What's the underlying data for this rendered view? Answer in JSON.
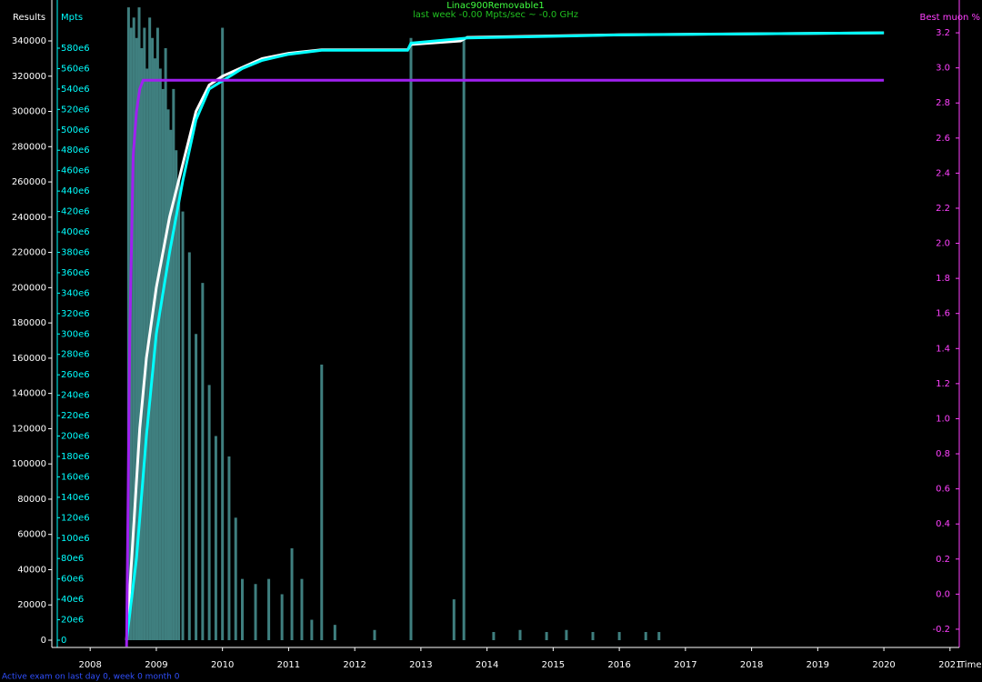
{
  "chart_data": {
    "type": "line",
    "title": "Linac900Removable1",
    "subtitle": "last week -0.00 Mpts/sec ~ -0.0 GHz",
    "footnote": "Active exam on last day 0, week 0 month 0",
    "x_label": "Time",
    "xlim": [
      2007.42,
      2021.14
    ],
    "xticks": [
      2008,
      2009,
      2010,
      2011,
      2012,
      2013,
      2014,
      2015,
      2016,
      2017,
      2018,
      2019,
      2020,
      2021
    ],
    "ylim": [
      -4128,
      363220
    ],
    "yticks": [
      0,
      20000,
      40000,
      60000,
      80000,
      100000,
      120000,
      140000,
      160000,
      180000,
      200000,
      220000,
      240000,
      260000,
      280000,
      300000,
      320000,
      340000
    ],
    "y2lim": [
      -7130000,
      627200000
    ],
    "y2ticks": [
      0,
      {
        "value": 20000000,
        "label": "20e6"
      },
      {
        "value": 40000000,
        "label": "40e6"
      },
      {
        "value": 60000000,
        "label": "60e6"
      },
      {
        "value": 80000000,
        "label": "80e6"
      },
      {
        "value": 100000000,
        "label": "100e6"
      },
      {
        "value": 120000000,
        "label": "120e6"
      },
      {
        "value": 140000000,
        "label": "140e6"
      },
      {
        "value": 160000000,
        "label": "160e6"
      },
      {
        "value": 180000000,
        "label": "180e6"
      },
      {
        "value": 200000000,
        "label": "200e6"
      },
      {
        "value": 220000000,
        "label": "220e6"
      },
      {
        "value": 240000000,
        "label": "240e6"
      },
      {
        "value": 260000000,
        "label": "260e6"
      },
      {
        "value": 280000000,
        "label": "280e6"
      },
      {
        "value": 300000000,
        "label": "300e6"
      },
      {
        "value": 320000000,
        "label": "320e6"
      },
      {
        "value": 340000000,
        "label": "340e6"
      },
      {
        "value": 360000000,
        "label": "360e6"
      },
      {
        "value": 380000000,
        "label": "380e6"
      },
      {
        "value": 400000000,
        "label": "400e6"
      },
      {
        "value": 420000000,
        "label": "420e6"
      },
      {
        "value": 440000000,
        "label": "440e6"
      },
      {
        "value": 460000000,
        "label": "460e6"
      },
      {
        "value": 480000000,
        "label": "480e6"
      },
      {
        "value": 500000000,
        "label": "500e6"
      },
      {
        "value": 520000000,
        "label": "520e6"
      },
      {
        "value": 540000000,
        "label": "540e6"
      },
      {
        "value": 560000000,
        "label": "560e6"
      },
      {
        "value": 580000000,
        "label": "580e6"
      }
    ],
    "y3lim": [
      -0.304,
      3.387
    ],
    "y3ticks": [
      -0.2,
      {
        "value": 0,
        "label": "0.0"
      },
      0.2,
      0.4,
      0.6,
      0.8,
      {
        "value": 1,
        "label": "1.0"
      },
      1.2,
      1.4,
      1.6,
      1.8,
      {
        "value": 2,
        "label": "2.0"
      },
      2.2,
      2.4,
      2.6,
      2.8,
      {
        "value": 3,
        "label": "3.0"
      },
      3.2
    ],
    "bars": {
      "color": "#3f7f7f",
      "axis": "y2",
      "x": [
        2008.58,
        2008.62,
        2008.66,
        2008.7,
        2008.74,
        2008.78,
        2008.82,
        2008.86,
        2008.9,
        2008.94,
        2008.98,
        2009.02,
        2009.06,
        2009.1,
        2009.14,
        2009.18,
        2009.22,
        2009.26,
        2009.3,
        2009.34,
        2009.4,
        2009.5,
        2009.6,
        2009.7,
        2009.8,
        2009.9,
        2010.0,
        2010.1,
        2010.2,
        2010.3,
        2010.5,
        2010.7,
        2010.9,
        2011.05,
        2011.2,
        2011.35,
        2011.5,
        2011.7,
        2012.3,
        2012.85,
        2013.5,
        2013.65,
        2014.1,
        2014.5,
        2014.9,
        2015.2,
        2015.6,
        2016.0,
        2016.4,
        2016.6
      ],
      "values": [
        620000000,
        600000000,
        610000000,
        590000000,
        620000000,
        580000000,
        600000000,
        560000000,
        610000000,
        590000000,
        570000000,
        600000000,
        560000000,
        540000000,
        580000000,
        520000000,
        500000000,
        540000000,
        480000000,
        450000000,
        420000000,
        380000000,
        300000000,
        350000000,
        250000000,
        200000000,
        600000000,
        180000000,
        120000000,
        60000000,
        55000000,
        60000000,
        45000000,
        90000000,
        60000000,
        20000000,
        270000000,
        15000000,
        10000000,
        590000000,
        40000000,
        590000000,
        8000000,
        10000000,
        8000000,
        10000000,
        8000000,
        8000000,
        8000000,
        8000000
      ]
    },
    "series": [
      {
        "name": "Results",
        "color": "#ffffff",
        "axis": "y",
        "x": [
          2008.55,
          2008.65,
          2008.75,
          2008.85,
          2009.0,
          2009.2,
          2009.4,
          2009.6,
          2009.8,
          2010.0,
          2010.3,
          2010.6,
          2011.0,
          2011.5,
          2012.0,
          2012.8,
          2012.85,
          2013.6,
          2013.7,
          2016.0,
          2020.0
        ],
        "values": [
          0,
          60000,
          120000,
          160000,
          200000,
          240000,
          270000,
          300000,
          315000,
          320000,
          325000,
          330000,
          333000,
          335000,
          335000,
          335000,
          338000,
          340000,
          342000,
          343500,
          344600
        ]
      },
      {
        "name": "Mpts",
        "color": "#00ffff",
        "axis": "y2",
        "x": [
          2008.55,
          2008.7,
          2008.85,
          2009.0,
          2009.2,
          2009.4,
          2009.6,
          2009.8,
          2010.0,
          2010.3,
          2010.6,
          2011.0,
          2011.5,
          2012.8,
          2012.85,
          2013.7,
          2016.0,
          2020.0
        ],
        "values": [
          0,
          80000000,
          200000000,
          300000000,
          380000000,
          450000000,
          510000000,
          540000000,
          548000000,
          560000000,
          568000000,
          574000000,
          578000000,
          578000000,
          585000000,
          590000000,
          593000000,
          595000000
        ]
      },
      {
        "name": "Best muon %",
        "color": "#a020f0",
        "axis": "y3",
        "x": [
          2008.55,
          2008.6,
          2008.65,
          2008.7,
          2008.75,
          2008.8,
          2012.0,
          2016.0,
          2020.0
        ],
        "values": [
          -0.3,
          1.5,
          2.5,
          2.75,
          2.88,
          2.93,
          2.93,
          2.93,
          2.93
        ]
      }
    ]
  }
}
